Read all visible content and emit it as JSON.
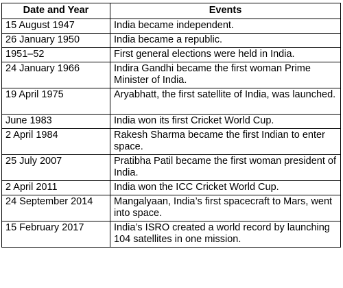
{
  "table": {
    "headers": {
      "date": "Date and Year",
      "events": "Events"
    },
    "rows": [
      {
        "date": "15 August 1947",
        "event": "India became independent."
      },
      {
        "date": "26 January 1950",
        "event": "India became a republic."
      },
      {
        "date": "1951–52",
        "event": "First general elections were held in India."
      },
      {
        "date": "24 January 1966",
        "event": "Indira Gandhi became the first woman Prime Minister of India."
      },
      {
        "date": "19 April 1975",
        "event": "Aryabhatt, the first satellite of India, was launched."
      },
      {
        "date": "June 1983",
        "event": "India won its first Cricket World Cup."
      },
      {
        "date": "2 April 1984",
        "event": "Rakesh Sharma became the first Indian to enter space."
      },
      {
        "date": "25 July 2007",
        "event": "Pratibha Patil became the first woman president of India."
      },
      {
        "date": "2 April 2011",
        "event": "India won the ICC Cricket World Cup."
      },
      {
        "date": "24 September 2014",
        "event": "Mangalyaan, India’s first spacecraft to Mars, went into space."
      },
      {
        "date": "15 February 2017",
        "event": "India’s ISRO created a world record by launching 104 satellites in one mission."
      }
    ]
  }
}
